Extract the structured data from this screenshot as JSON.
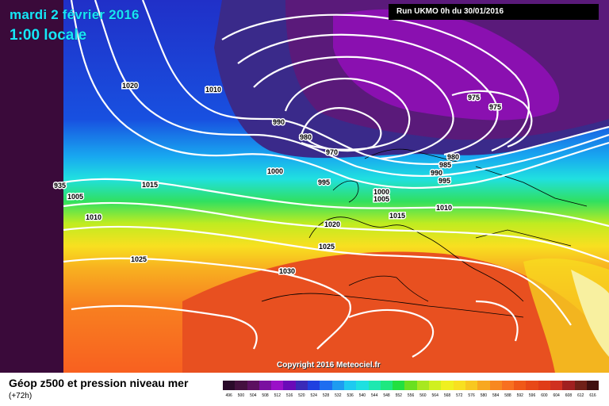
{
  "header": {
    "date": "mardi 2 février 2016",
    "time": "1:00 locale",
    "run": "Run UKMO 0h du 30/01/2016"
  },
  "copyright": "Copyright 2016 Meteociel.fr",
  "footer": {
    "title": "Géop z500 et pression niveau mer",
    "subtitle": "(+72h)"
  },
  "isobar_labels": [
    "1020",
    "1010",
    "990",
    "980",
    "970",
    "975",
    "975",
    "980",
    "985",
    "990",
    "995",
    "1000",
    "995",
    "935",
    "1005",
    "1015",
    "1010",
    "1000",
    "1005",
    "1015",
    "1010",
    "1020",
    "1025",
    "1025",
    "1030"
  ],
  "legend": {
    "values": [
      "496",
      "500",
      "504",
      "508",
      "512",
      "516",
      "520",
      "524",
      "528",
      "532",
      "536",
      "540",
      "544",
      "548",
      "552",
      "556",
      "560",
      "564",
      "568",
      "572",
      "576",
      "580",
      "584",
      "588",
      "592",
      "596",
      "600",
      "604",
      "608",
      "612",
      "616"
    ],
    "colors": [
      "#2a0a2a",
      "#44103f",
      "#5c1060",
      "#7a10a0",
      "#9a10c8",
      "#6a0ab8",
      "#3a2ab8",
      "#2040e0",
      "#1e6ef0",
      "#1e9cf0",
      "#1ecaf0",
      "#1ee0e0",
      "#1ee8b0",
      "#1ee880",
      "#22e040",
      "#6ae020",
      "#a8e820",
      "#d0f020",
      "#f0f020",
      "#f8e020",
      "#f8c820",
      "#f8a820",
      "#f88820",
      "#f87020",
      "#f05818",
      "#e84818",
      "#e03c18",
      "#d03020",
      "#a02020",
      "#702018",
      "#401010"
    ]
  }
}
